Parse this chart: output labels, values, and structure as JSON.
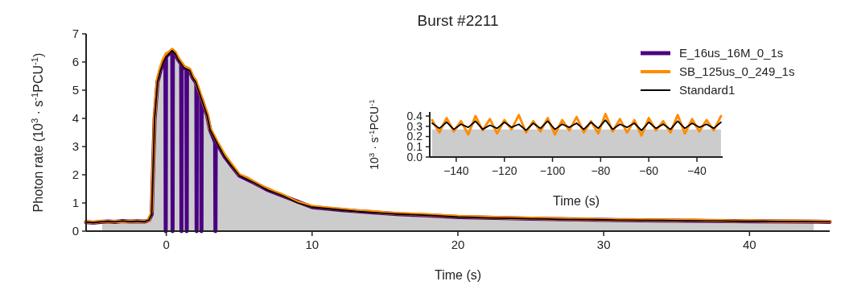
{
  "chart_data": [
    {
      "type": "line",
      "title": "Burst #2211",
      "xlabel": "Time (s)",
      "ylabel": "Photon rate (10$^{3}$ · s$^{-1}$PCU$^{-1}$)",
      "xlim": [
        -5.5,
        45.5
      ],
      "xticks": [
        0,
        10,
        20,
        30,
        40
      ],
      "ylim": [
        0,
        7
      ],
      "yticks": [
        0,
        1,
        2,
        3,
        4,
        5,
        6,
        7
      ],
      "legend": "top right",
      "x": [
        -5.5,
        -5,
        -4.5,
        -4,
        -3.5,
        -3,
        -2.5,
        -2,
        -1.5,
        -1.2,
        -1,
        -0.8,
        -0.6,
        -0.4,
        -0.2,
        0,
        0.2,
        0.4,
        0.6,
        0.8,
        1,
        1.2,
        1.4,
        1.6,
        1.8,
        2,
        2.2,
        2.4,
        2.6,
        2.8,
        3,
        3.5,
        4,
        4.5,
        5,
        5.5,
        6,
        6.5,
        7,
        7.5,
        8,
        9,
        10,
        11,
        12,
        13,
        14,
        15,
        16,
        17,
        18,
        19,
        20,
        21,
        22,
        23,
        24,
        25,
        26,
        27,
        28,
        29,
        30,
        31,
        32,
        33,
        34,
        35,
        36,
        37,
        38,
        39,
        40,
        41,
        42,
        43,
        44,
        45,
        45.5
      ],
      "series": [
        {
          "type": "area",
          "color": "#cccccc",
          "x": [
            -4.4,
            -4,
            -3,
            -2,
            -1.2,
            -1,
            -0.8,
            -0.6,
            -0.4,
            -0.2,
            0,
            0.2,
            0.4,
            0.6,
            0.8,
            1,
            1.2,
            1.4,
            1.6,
            1.8,
            2,
            2.2,
            2.4,
            2.6,
            2.8,
            3,
            3.5,
            4,
            4.5,
            5,
            5.5,
            6,
            6.5,
            7,
            7.5,
            8,
            9,
            10,
            12,
            14,
            16,
            18,
            20,
            22,
            24,
            26,
            28,
            30,
            32,
            34,
            36,
            38,
            40,
            42,
            44,
            44.4
          ],
          "values": [
            0.3,
            0.32,
            0.33,
            0.33,
            0.34,
            0.55,
            3.9,
            5.2,
            5.6,
            5.9,
            6.1,
            6.2,
            6.3,
            6.2,
            6.0,
            5.85,
            5.7,
            5.65,
            5.6,
            5.35,
            5.2,
            4.9,
            4.6,
            4.3,
            4.0,
            3.5,
            3.0,
            2.55,
            2.2,
            1.9,
            1.78,
            1.65,
            1.52,
            1.4,
            1.3,
            1.2,
            0.97,
            0.82,
            0.72,
            0.64,
            0.58,
            0.54,
            0.48,
            0.46,
            0.44,
            0.42,
            0.4,
            0.39,
            0.38,
            0.37,
            0.36,
            0.35,
            0.34,
            0.33,
            0.33,
            0.32
          ]
        },
        {
          "name": "E_16us_16M_0_1s",
          "color": "#4b0082",
          "x": [
            -5.5,
            -5,
            -4.5,
            -4,
            -3.5,
            -3,
            -2.5,
            -2,
            -1.5,
            -1.2,
            -1,
            -0.8,
            -0.6,
            -0.4,
            -0.2,
            -0.06,
            -0.04,
            -0.02,
            0,
            0.2,
            0.4,
            0.41,
            0.43,
            0.45,
            0.6,
            0.8,
            1,
            1.02,
            1.04,
            1.06,
            1.2,
            1.38,
            1.4,
            1.42,
            1.6,
            1.8,
            2,
            2.06,
            2.08,
            2.1,
            2.2,
            2.39,
            2.41,
            2.43,
            2.6,
            2.8,
            3,
            3.35,
            3.37,
            3.39,
            3.5,
            4,
            4.5,
            5,
            6,
            7,
            8,
            10,
            12,
            14,
            16,
            18,
            20,
            25,
            30,
            35,
            40,
            45.5
          ],
          "values": [
            0.32,
            0.3,
            0.33,
            0.34,
            0.33,
            0.36,
            0.34,
            0.35,
            0.34,
            0.38,
            0.6,
            4.0,
            5.3,
            5.7,
            6.0,
            6.15,
            0,
            6.15,
            6.2,
            6.3,
            6.4,
            6.4,
            0,
            6.38,
            6.3,
            6.1,
            5.95,
            5.94,
            0,
            5.93,
            5.8,
            5.75,
            0,
            5.75,
            5.7,
            5.45,
            5.3,
            5.2,
            0,
            5.15,
            5.0,
            4.7,
            0,
            4.68,
            4.4,
            4.1,
            3.6,
            3.15,
            0,
            3.13,
            3.1,
            2.64,
            2.3,
            1.97,
            1.72,
            1.45,
            1.25,
            0.85,
            0.75,
            0.67,
            0.6,
            0.56,
            0.5,
            0.44,
            0.4,
            0.37,
            0.35,
            0.33
          ]
        },
        {
          "name": "SB_125us_0_249_1s",
          "color": "#ff8c00",
          "values": [
            0.33,
            0.31,
            0.35,
            0.33,
            0.35,
            0.34,
            0.36,
            0.34,
            0.36,
            0.37,
            0.7,
            4.1,
            5.4,
            5.8,
            6.1,
            6.3,
            6.35,
            6.45,
            6.35,
            6.15,
            6.0,
            5.85,
            5.8,
            5.75,
            5.5,
            5.35,
            5.05,
            4.75,
            4.45,
            4.15,
            3.65,
            3.15,
            2.7,
            2.35,
            2.0,
            1.9,
            1.75,
            1.6,
            1.5,
            1.38,
            1.28,
            1.03,
            0.88,
            0.82,
            0.78,
            0.72,
            0.7,
            0.65,
            0.62,
            0.6,
            0.58,
            0.55,
            0.52,
            0.51,
            0.49,
            0.48,
            0.46,
            0.46,
            0.44,
            0.44,
            0.42,
            0.43,
            0.41,
            0.4,
            0.41,
            0.39,
            0.39,
            0.38,
            0.39,
            0.37,
            0.37,
            0.36,
            0.37,
            0.36,
            0.35,
            0.36,
            0.35,
            0.34,
            0.34
          ]
        },
        {
          "name": "Standard1",
          "color": "#000000",
          "values": [
            0.32,
            0.3,
            0.33,
            0.34,
            0.33,
            0.36,
            0.34,
            0.35,
            0.34,
            0.38,
            0.6,
            4.0,
            5.3,
            5.7,
            6.0,
            6.2,
            6.3,
            6.4,
            6.3,
            6.1,
            5.95,
            5.8,
            5.75,
            5.7,
            5.45,
            5.3,
            5.0,
            4.7,
            4.4,
            4.1,
            3.6,
            3.1,
            2.64,
            2.3,
            1.97,
            1.85,
            1.72,
            1.58,
            1.45,
            1.35,
            1.25,
            1.0,
            0.85,
            0.8,
            0.75,
            0.7,
            0.67,
            0.63,
            0.6,
            0.58,
            0.56,
            0.53,
            0.5,
            0.49,
            0.47,
            0.46,
            0.45,
            0.44,
            0.43,
            0.42,
            0.41,
            0.41,
            0.4,
            0.39,
            0.39,
            0.38,
            0.38,
            0.37,
            0.37,
            0.36,
            0.36,
            0.35,
            0.35,
            0.35,
            0.34,
            0.34,
            0.34,
            0.33,
            0.33
          ]
        }
      ]
    },
    {
      "type": "line",
      "xlabel": "Time (s)",
      "ylabel": "10$^{3}$ · s$^{-1}$PCU$^{-1}$",
      "xlim": [
        -151,
        -29.3
      ],
      "xticks": [
        {
          "value": -140,
          "label": "−140"
        },
        {
          "value": -120,
          "label": "−120"
        },
        {
          "value": -100,
          "label": "−100"
        },
        {
          "value": -80,
          "label": "−80"
        },
        {
          "value": -60,
          "label": "−60"
        },
        {
          "value": -40,
          "label": "−40"
        }
      ],
      "ylim": [
        0,
        0.44
      ],
      "yticks": [
        {
          "value": 0,
          "label": "0.0"
        },
        0.1,
        0.2,
        0.3,
        0.4
      ],
      "x": [
        -150,
        -147,
        -144,
        -141,
        -138,
        -135,
        -132,
        -129,
        -126,
        -123,
        -120,
        -117,
        -114,
        -111,
        -108,
        -105,
        -102,
        -99,
        -96,
        -93,
        -90,
        -87,
        -84,
        -81,
        -78,
        -75,
        -72,
        -69,
        -66,
        -63,
        -60,
        -57,
        -54,
        -51,
        -48,
        -45,
        -42,
        -39,
        -36,
        -33,
        -30
      ],
      "series": [
        {
          "type": "area",
          "color": "#cccccc",
          "x": [
            -150,
            -120,
            -90,
            -60,
            -30
          ],
          "values": [
            0.27,
            0.27,
            0.27,
            0.27,
            0.27
          ]
        },
        {
          "color": "#ff8c00",
          "values": [
            0.36,
            0.24,
            0.38,
            0.25,
            0.35,
            0.22,
            0.4,
            0.26,
            0.37,
            0.23,
            0.36,
            0.27,
            0.41,
            0.24,
            0.35,
            0.25,
            0.38,
            0.22,
            0.36,
            0.26,
            0.39,
            0.24,
            0.35,
            0.23,
            0.42,
            0.25,
            0.37,
            0.24,
            0.36,
            0.21,
            0.38,
            0.26,
            0.35,
            0.24,
            0.41,
            0.23,
            0.37,
            0.25,
            0.36,
            0.26,
            0.4
          ]
        },
        {
          "color": "#000000",
          "values": [
            0.33,
            0.28,
            0.34,
            0.27,
            0.32,
            0.29,
            0.35,
            0.27,
            0.31,
            0.28,
            0.34,
            0.29,
            0.32,
            0.26,
            0.33,
            0.28,
            0.35,
            0.27,
            0.32,
            0.29,
            0.33,
            0.27,
            0.34,
            0.28,
            0.36,
            0.27,
            0.32,
            0.29,
            0.33,
            0.26,
            0.34,
            0.28,
            0.32,
            0.27,
            0.35,
            0.28,
            0.33,
            0.29,
            0.32,
            0.28,
            0.34
          ]
        }
      ]
    }
  ]
}
